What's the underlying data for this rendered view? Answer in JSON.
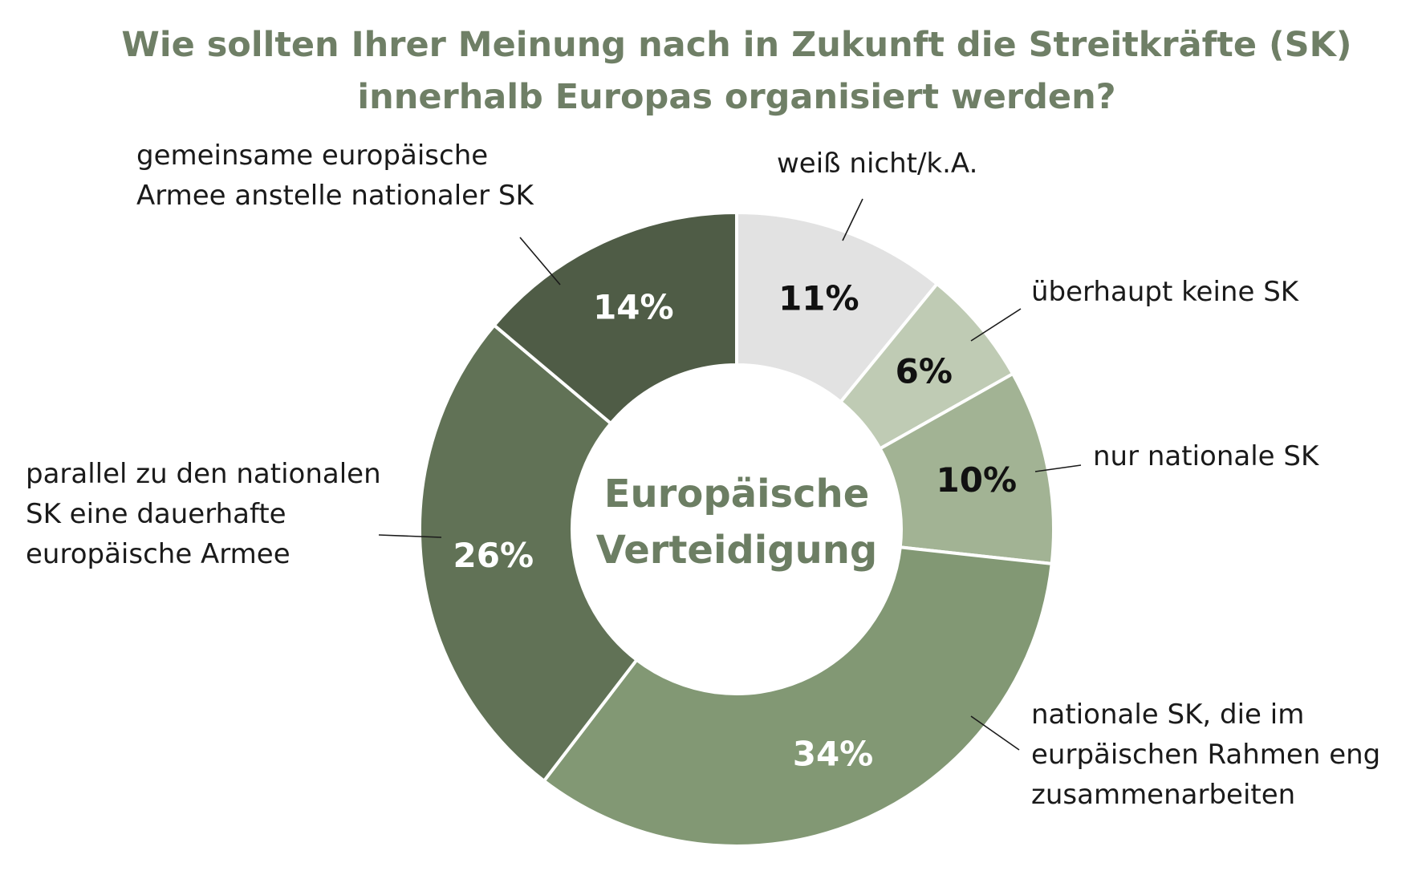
{
  "chart_data": {
    "type": "pie",
    "variant": "donut",
    "title_lines": [
      "Wie sollten Ihrer Meinung nach in Zukunft die Streitkräfte (SK)",
      "innerhalb Europas organisiert werden?"
    ],
    "center_lines": [
      "Europäische",
      "Verteidigung"
    ],
    "colors": {
      "title": "#6f7f66",
      "center_text": "#6c7e63"
    },
    "slices": [
      {
        "label_lines": [
          "weiß nicht/k.A."
        ],
        "value": 11,
        "value_label": "11%",
        "color": "#e2e2e2",
        "text_color": "#111111"
      },
      {
        "label_lines": [
          "überhaupt keine SK"
        ],
        "value": 6,
        "value_label": "6%",
        "color": "#bfcbb4",
        "text_color": "#111111"
      },
      {
        "label_lines": [
          "nur nationale SK"
        ],
        "value": 10,
        "value_label": "10%",
        "color": "#a2b394",
        "text_color": "#111111"
      },
      {
        "label_lines": [
          "nationale SK, die im",
          "eurpäischen Rahmen eng",
          "zusammenarbeiten"
        ],
        "value": 34,
        "value_label": "34%",
        "color": "#829874",
        "text_color": "#ffffff"
      },
      {
        "label_lines": [
          "parallel zu den nationalen",
          "SK eine dauerhafte",
          "europäische Armee"
        ],
        "value": 26,
        "value_label": "26%",
        "color": "#617256",
        "text_color": "#ffffff"
      },
      {
        "label_lines": [
          "gemeinsame europäische",
          "Armee anstelle nationaler SK"
        ],
        "value": 14,
        "value_label": "14%",
        "color": "#4f5c46",
        "text_color": "#ffffff"
      }
    ]
  }
}
